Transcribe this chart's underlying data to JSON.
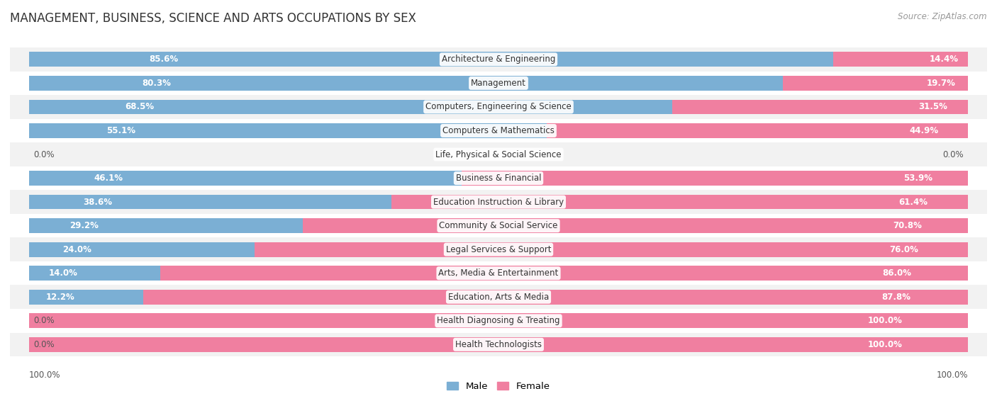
{
  "title": "MANAGEMENT, BUSINESS, SCIENCE AND ARTS OCCUPATIONS BY SEX",
  "source": "Source: ZipAtlas.com",
  "categories": [
    "Architecture & Engineering",
    "Management",
    "Computers, Engineering & Science",
    "Computers & Mathematics",
    "Life, Physical & Social Science",
    "Business & Financial",
    "Education Instruction & Library",
    "Community & Social Service",
    "Legal Services & Support",
    "Arts, Media & Entertainment",
    "Education, Arts & Media",
    "Health Diagnosing & Treating",
    "Health Technologists"
  ],
  "male_pct": [
    85.6,
    80.3,
    68.5,
    55.1,
    0.0,
    46.1,
    38.6,
    29.2,
    24.0,
    14.0,
    12.2,
    0.0,
    0.0
  ],
  "female_pct": [
    14.4,
    19.7,
    31.5,
    44.9,
    0.0,
    53.9,
    61.4,
    70.8,
    76.0,
    86.0,
    87.8,
    100.0,
    100.0
  ],
  "male_color": "#7bafd4",
  "female_color": "#f07fa0",
  "bg_color": "#ffffff",
  "row_colors": [
    "#f2f2f2",
    "#ffffff"
  ],
  "bar_height": 0.62,
  "label_fontsize": 8.5,
  "title_fontsize": 12,
  "source_fontsize": 8.5,
  "legend_fontsize": 9.5,
  "pct_fontsize": 8.5
}
